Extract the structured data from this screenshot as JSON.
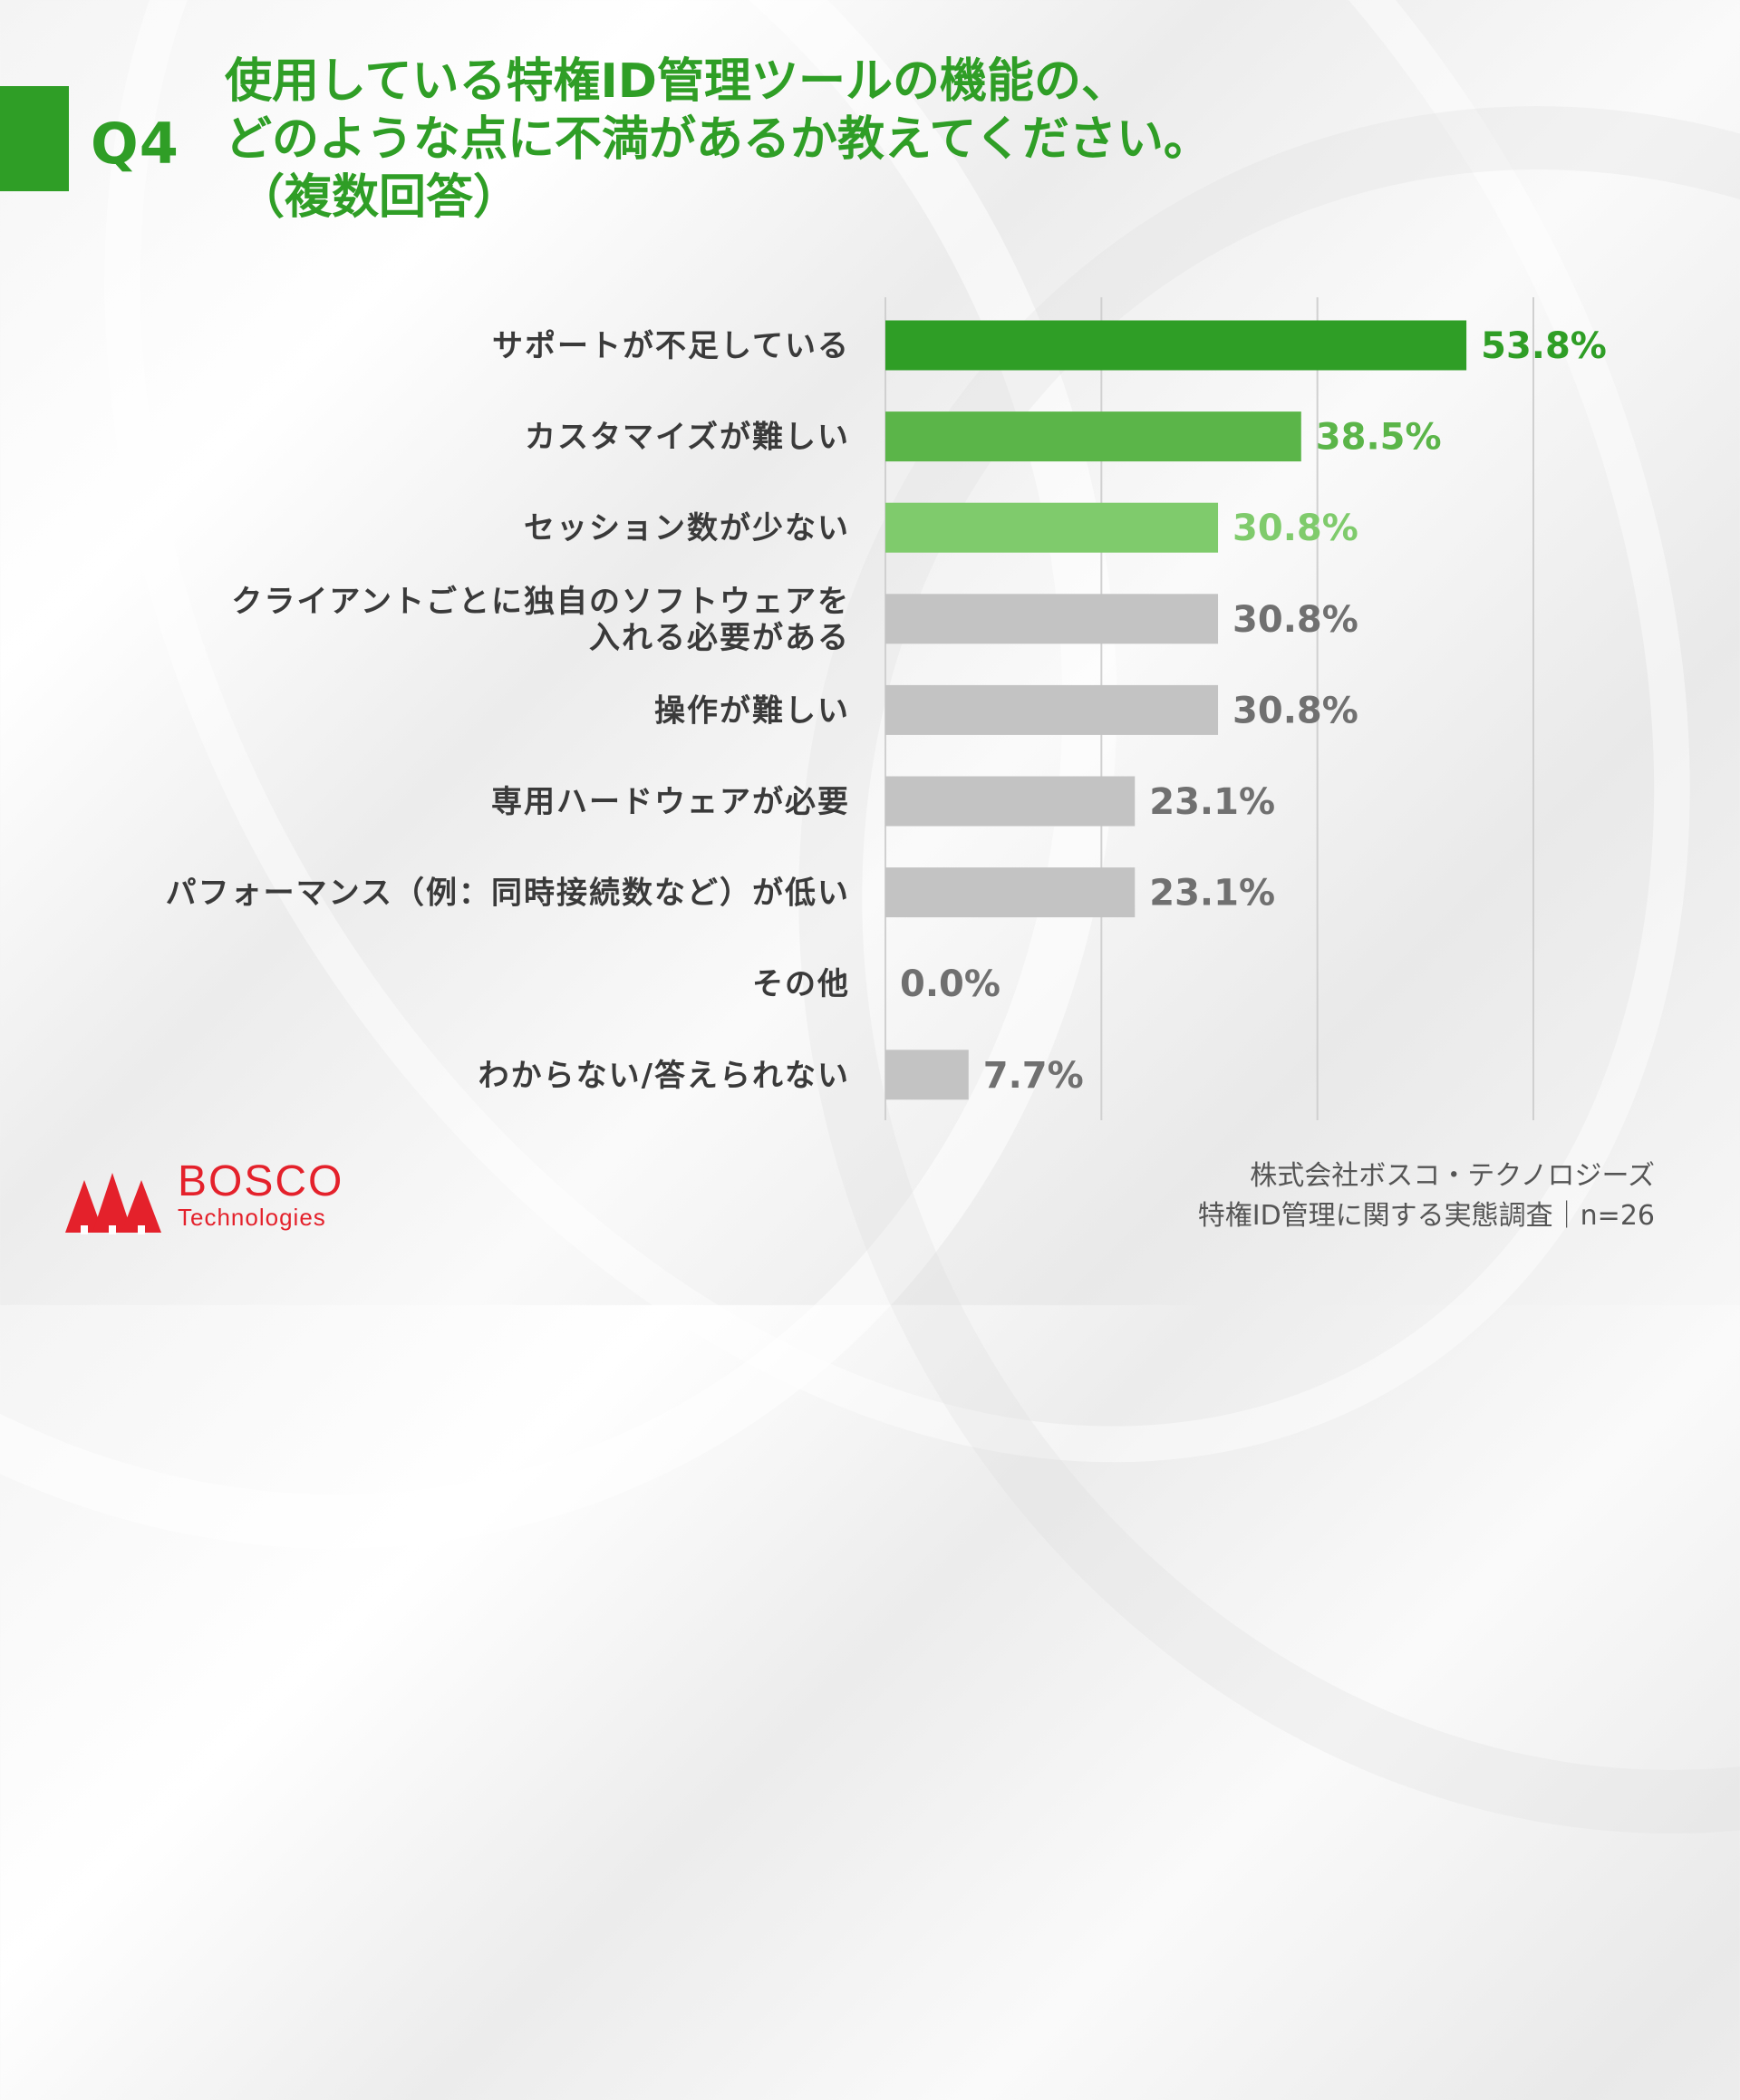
{
  "header": {
    "question_number": "Q4",
    "title_lines": [
      "使用している特権ID管理ツールの機能の、",
      "どのような点に不満があるか教えてください。",
      "（複数回答）"
    ]
  },
  "chart_data": {
    "type": "bar",
    "orientation": "horizontal",
    "categories": [
      [
        "サポートが不足している"
      ],
      [
        "カスタマイズが難しい"
      ],
      [
        "セッション数が少ない"
      ],
      [
        "クライアントごとに独自のソフトウェアを",
        "入れる必要がある"
      ],
      [
        "操作が難しい"
      ],
      [
        "専用ハードウェアが必要"
      ],
      [
        "パフォーマンス（例：同時接続数など）が低い"
      ],
      [
        "その他"
      ],
      [
        "わからない/答えられない"
      ]
    ],
    "values": [
      53.8,
      38.5,
      30.8,
      30.8,
      30.8,
      23.1,
      23.1,
      0.0,
      7.7
    ],
    "value_labels": [
      "53.8%",
      "38.5%",
      "30.8%",
      "30.8%",
      "30.8%",
      "23.1%",
      "23.1%",
      "0.0%",
      "7.7%"
    ],
    "xlim": [
      0,
      60
    ],
    "gridlines": [
      0,
      20,
      40,
      60
    ],
    "grid": true,
    "bar_colors": [
      "#2f9e26",
      "#5bb549",
      "#7fcb6c",
      "#c3c3c3",
      "#c3c3c3",
      "#c3c3c3",
      "#c3c3c3",
      "#c3c3c3",
      "#c3c3c3"
    ],
    "label_colors": [
      "#2f9e26",
      "#5bb549",
      "#7fcb6c",
      "#707070",
      "#707070",
      "#707070",
      "#707070",
      "#707070",
      "#707070"
    ]
  },
  "logo": {
    "name": "BOSCO",
    "sub": "Technologies",
    "color": "#e4212b"
  },
  "source": {
    "line1": "株式会社ボスコ・テクノロジーズ",
    "line2": "特権ID管理に関する実態調査｜n=26"
  }
}
